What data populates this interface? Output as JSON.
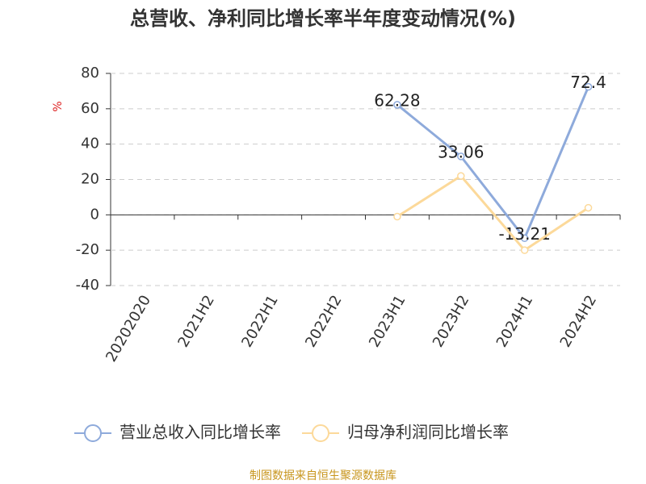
{
  "chart_data": {
    "type": "line",
    "title": "总营收、净利同比增长率半年度变动情况(%)",
    "y_label": "%",
    "categories": [
      "20202020",
      "2021H2",
      "2022H1",
      "2022H2",
      "2023H1",
      "2023H2",
      "2024H1",
      "2024H2"
    ],
    "series": [
      {
        "name": "营业总收入同比增长率",
        "color": "#8eaadb",
        "values": [
          null,
          null,
          null,
          null,
          62.28,
          33.06,
          -13.21,
          72.4
        ],
        "show_labels": true
      },
      {
        "name": "归母净利润同比增长率",
        "color": "#fcd99a",
        "values": [
          null,
          null,
          null,
          null,
          -1,
          22,
          -20,
          4
        ],
        "show_labels": false
      }
    ],
    "ylim": [
      -40,
      80
    ],
    "yticks": [
      -40,
      -20,
      0,
      20,
      40,
      60,
      80
    ],
    "grid": true,
    "source": "制图数据来自恒生聚源数据库"
  }
}
